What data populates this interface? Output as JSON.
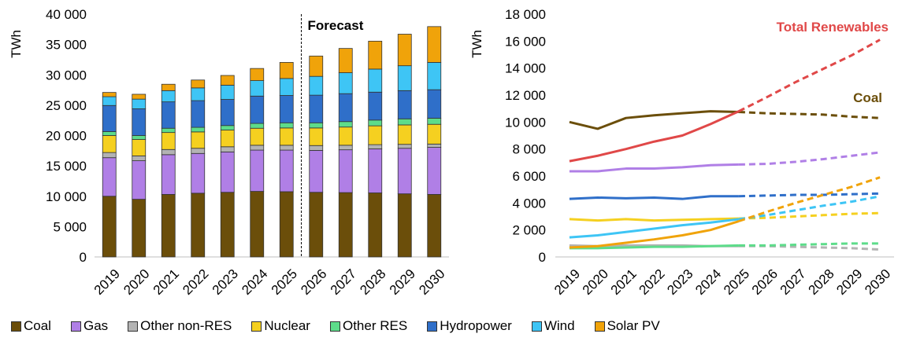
{
  "chart_data": [
    {
      "type": "bar",
      "stacked": true,
      "unit_label": "TWh",
      "forecast_label": "Forecast",
      "forecast_start": "2026",
      "categories": [
        "2019",
        "2020",
        "2021",
        "2022",
        "2023",
        "2024",
        "2025",
        "2026",
        "2027",
        "2028",
        "2029",
        "2030"
      ],
      "ylim": [
        0,
        40000
      ],
      "yticks": [
        "0",
        "5 000",
        "10 000",
        "15 000",
        "20 000",
        "25 000",
        "30 000",
        "35 000",
        "40 000"
      ],
      "series": [
        {
          "name": "Coal",
          "color": "#6b4e0a",
          "values": [
            10000,
            9500,
            10300,
            10500,
            10650,
            10800,
            10750,
            10650,
            10600,
            10550,
            10400,
            10300
          ]
        },
        {
          "name": "Gas",
          "color": "#b07fe6",
          "values": [
            6350,
            6350,
            6550,
            6550,
            6650,
            6800,
            6850,
            6900,
            7050,
            7250,
            7500,
            7750
          ]
        },
        {
          "name": "Other non-RES",
          "color": "#b3b3b3",
          "values": [
            850,
            800,
            850,
            850,
            850,
            800,
            800,
            800,
            750,
            700,
            650,
            550
          ]
        },
        {
          "name": "Nuclear",
          "color": "#f5d020",
          "values": [
            2800,
            2700,
            2800,
            2700,
            2750,
            2800,
            2850,
            2900,
            3000,
            3100,
            3200,
            3250
          ]
        },
        {
          "name": "Other RES",
          "color": "#5ddc8a",
          "values": [
            650,
            650,
            700,
            750,
            750,
            800,
            850,
            850,
            900,
            950,
            1000,
            1000
          ]
        },
        {
          "name": "Hydropower",
          "color": "#2f6fc9",
          "values": [
            4300,
            4400,
            4350,
            4400,
            4300,
            4500,
            4500,
            4550,
            4600,
            4600,
            4650,
            4700
          ]
        },
        {
          "name": "Wind",
          "color": "#3ec5f5",
          "values": [
            1450,
            1600,
            1850,
            2100,
            2350,
            2550,
            2800,
            3100,
            3450,
            3800,
            4100,
            4500
          ]
        },
        {
          "name": "Solar PV",
          "color": "#f0a30a",
          "values": [
            700,
            800,
            1050,
            1300,
            1600,
            2000,
            2650,
            3350,
            4000,
            4600,
            5200,
            5900
          ]
        }
      ]
    },
    {
      "type": "line",
      "unit_label": "TWh",
      "forecast_start": "2025",
      "categories": [
        "2019",
        "2020",
        "2021",
        "2022",
        "2023",
        "2024",
        "2025",
        "2026",
        "2027",
        "2028",
        "2029",
        "2030"
      ],
      "ylim": [
        0,
        18000
      ],
      "yticks": [
        "0",
        "2 000",
        "4 000",
        "6 000",
        "8 000",
        "10 000",
        "12 000",
        "14 000",
        "16 000",
        "18 000"
      ],
      "series": [
        {
          "name": "Coal",
          "label": "Coal",
          "color": "#6b4e0a",
          "values": [
            10000,
            9500,
            10300,
            10500,
            10650,
            10800,
            10750,
            10650,
            10600,
            10550,
            10400,
            10300
          ]
        },
        {
          "name": "Gas",
          "color": "#b07fe6",
          "values": [
            6350,
            6350,
            6550,
            6550,
            6650,
            6800,
            6850,
            6900,
            7050,
            7250,
            7500,
            7750
          ]
        },
        {
          "name": "Other non-RES",
          "color": "#b3b3b3",
          "values": [
            850,
            800,
            850,
            850,
            850,
            800,
            800,
            800,
            750,
            700,
            650,
            550
          ]
        },
        {
          "name": "Nuclear",
          "color": "#f5d020",
          "values": [
            2800,
            2700,
            2800,
            2700,
            2750,
            2800,
            2850,
            2900,
            3000,
            3100,
            3200,
            3250
          ]
        },
        {
          "name": "Other RES",
          "color": "#5ddc8a",
          "values": [
            650,
            650,
            700,
            750,
            750,
            800,
            850,
            850,
            900,
            950,
            1000,
            1000
          ]
        },
        {
          "name": "Hydropower",
          "color": "#2f6fc9",
          "values": [
            4300,
            4400,
            4350,
            4400,
            4300,
            4500,
            4500,
            4550,
            4600,
            4600,
            4650,
            4700
          ]
        },
        {
          "name": "Wind",
          "color": "#3ec5f5",
          "values": [
            1450,
            1600,
            1850,
            2100,
            2350,
            2550,
            2800,
            3100,
            3450,
            3800,
            4100,
            4500
          ]
        },
        {
          "name": "Solar PV",
          "color": "#f0a30a",
          "values": [
            700,
            800,
            1050,
            1300,
            1600,
            2000,
            2650,
            3350,
            4000,
            4600,
            5200,
            5900
          ]
        },
        {
          "name": "Total Renewables",
          "label": "Total Renewables",
          "color": "#e04848",
          "values": [
            7100,
            7500,
            8000,
            8550,
            9000,
            9850,
            10800,
            11850,
            12950,
            13950,
            14950,
            16100
          ]
        }
      ]
    }
  ],
  "legend": [
    {
      "label": "Coal",
      "color": "#6b4e0a"
    },
    {
      "label": "Gas",
      "color": "#b07fe6"
    },
    {
      "label": "Other non-RES",
      "color": "#b3b3b3"
    },
    {
      "label": "Nuclear",
      "color": "#f5d020"
    },
    {
      "label": "Other RES",
      "color": "#5ddc8a"
    },
    {
      "label": "Hydropower",
      "color": "#2f6fc9"
    },
    {
      "label": "Wind",
      "color": "#3ec5f5"
    },
    {
      "label": "Solar PV",
      "color": "#f0a30a"
    }
  ]
}
